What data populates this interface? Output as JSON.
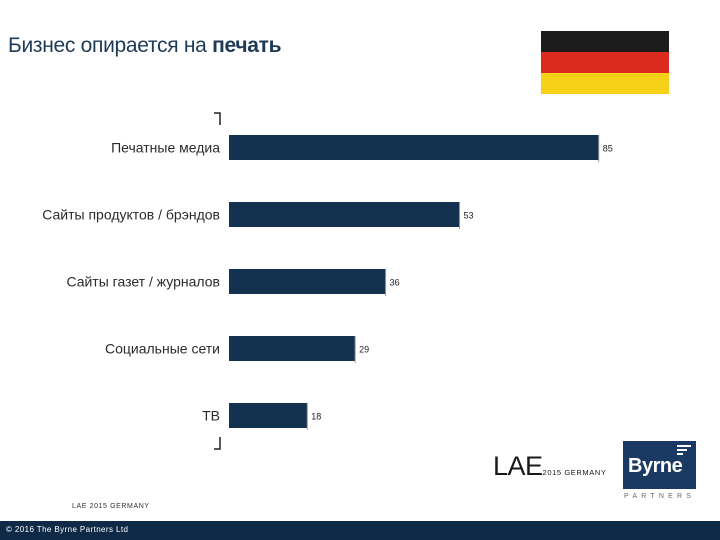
{
  "header": {
    "title_prefix": "Бизнес опирается на ",
    "title_bold": "печать"
  },
  "flag": {
    "colors": [
      "#1c1c1c",
      "#dd2a1f",
      "#f7d117"
    ]
  },
  "chart_data": {
    "type": "bar",
    "orientation": "horizontal",
    "categories": [
      "Печатные медиа",
      "Сайты продуктов / брэндов",
      "Сайты газет / журналов",
      "Социальные сети",
      "ТВ"
    ],
    "values": [
      85,
      53,
      36,
      29,
      18
    ],
    "xlim": [
      0,
      100
    ],
    "bar_color": "#13324f",
    "grid": false,
    "legend": "none"
  },
  "branding": {
    "lae_big": "LAE",
    "lae_small": "2015 GERMANY",
    "logo_name": "Byrne",
    "logo_sub": "PARTNERS"
  },
  "source": "LAE 2015 GERMANY",
  "footer": {
    "copyright": "© 2016 The Byrne Partners Ltd"
  }
}
